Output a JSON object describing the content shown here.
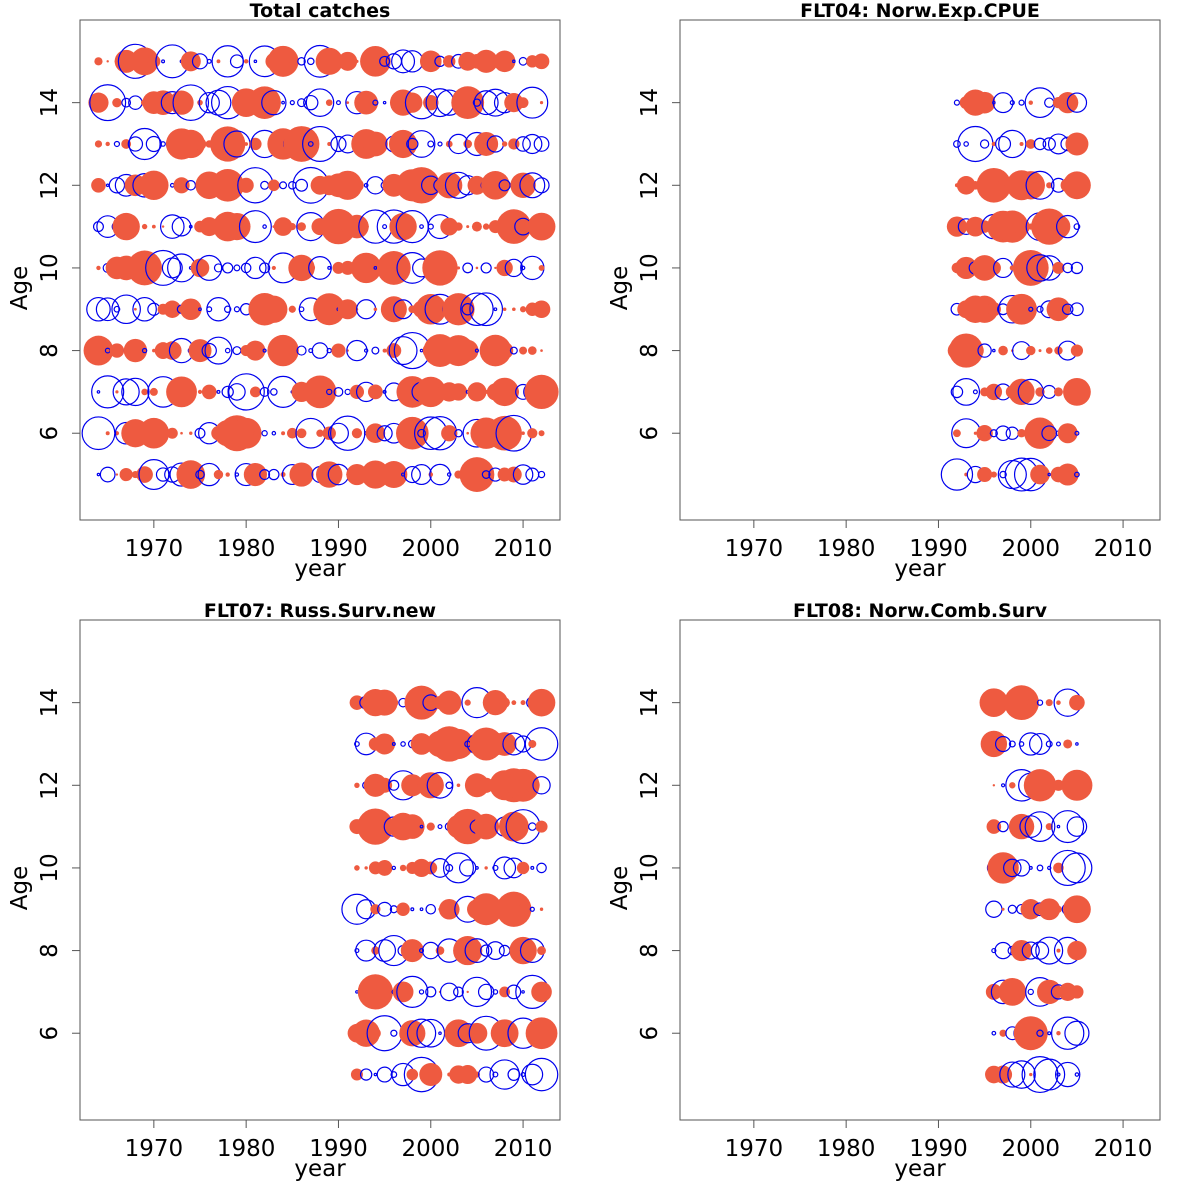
{
  "colors": {
    "positive": "#ee5a40",
    "negative": "#0000ee",
    "frame": "#555555",
    "text": "#000000"
  },
  "chart_data": [
    {
      "type": "scatter",
      "subtype": "bubble-residuals",
      "title": "Total catches",
      "xlabel": "year",
      "ylabel": "Age",
      "xlim": [
        1962,
        2014
      ],
      "ylim": [
        3.9,
        16
      ],
      "xticks": [
        "1970",
        "1980",
        "1990",
        "2000",
        "2010"
      ],
      "yticks": [
        "6",
        "8",
        "10",
        "12",
        "14"
      ],
      "years": [
        1964,
        2012
      ],
      "ages": [
        5,
        6,
        7,
        8,
        9,
        10,
        11,
        12,
        13,
        14,
        15
      ],
      "grid": false
    },
    {
      "type": "scatter",
      "subtype": "bubble-residuals",
      "title": "FLT04:      Norw.Exp.CPUE",
      "xlabel": "year",
      "ylabel": "Age",
      "xlim": [
        1962,
        2014
      ],
      "ylim": [
        3.9,
        16
      ],
      "xticks": [
        "1970",
        "1980",
        "1990",
        "2000",
        "2010"
      ],
      "yticks": [
        "6",
        "8",
        "10",
        "12",
        "14"
      ],
      "years": [
        1992,
        2005
      ],
      "ages": [
        5,
        6,
        7,
        8,
        9,
        10,
        11,
        12,
        13,
        14
      ],
      "grid": false
    },
    {
      "type": "scatter",
      "subtype": "bubble-residuals",
      "title": "FLT07:      Russ.Surv.new",
      "xlabel": "year",
      "ylabel": "Age",
      "xlim": [
        1962,
        2014
      ],
      "ylim": [
        3.9,
        16
      ],
      "xticks": [
        "1970",
        "1980",
        "1990",
        "2000",
        "2010"
      ],
      "yticks": [
        "6",
        "8",
        "10",
        "12",
        "14"
      ],
      "years": [
        1992,
        2012
      ],
      "ages": [
        5,
        6,
        7,
        8,
        9,
        10,
        11,
        12,
        13,
        14
      ],
      "grid": false
    },
    {
      "type": "scatter",
      "subtype": "bubble-residuals",
      "title": "FLT08:      Norw.Comb.Surv",
      "xlabel": "year",
      "ylabel": "Age",
      "xlim": [
        1962,
        2014
      ],
      "ylim": [
        3.9,
        16
      ],
      "xticks": [
        "1970",
        "1980",
        "1990",
        "2000",
        "2010"
      ],
      "yticks": [
        "6",
        "8",
        "10",
        "12",
        "14"
      ],
      "years": [
        1996,
        2005
      ],
      "ages": [
        5,
        6,
        7,
        8,
        9,
        10,
        11,
        12,
        13,
        14
      ],
      "grid": false
    }
  ]
}
